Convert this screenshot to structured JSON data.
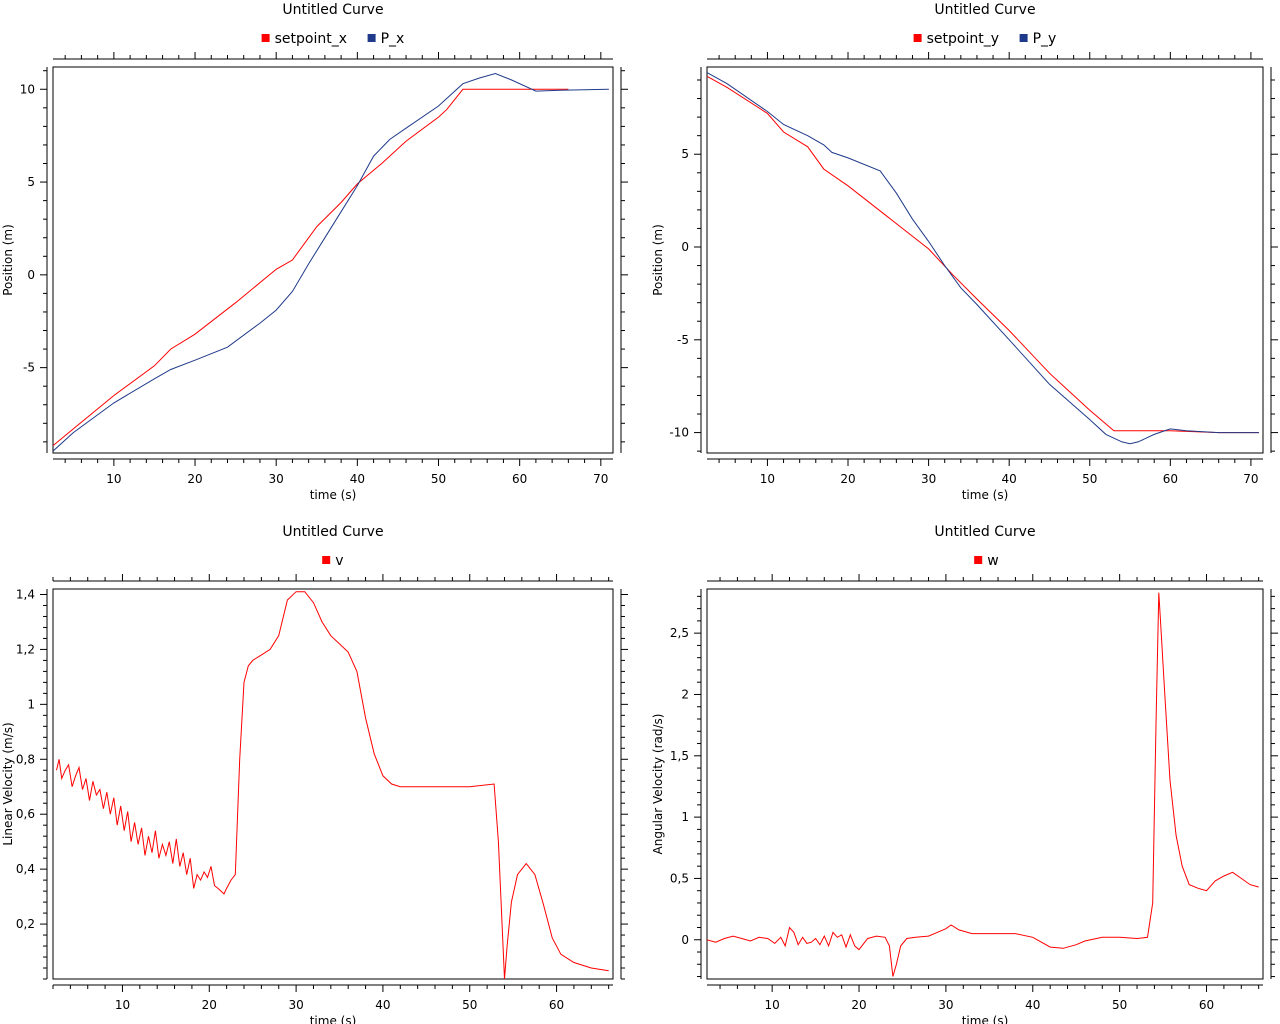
{
  "chart_data": [
    {
      "type": "line",
      "title": "Untitled Curve",
      "xlabel": "time (s)",
      "ylabel": "Position (m)",
      "xlim": [
        2.5,
        71.5
      ],
      "ylim": [
        -9.6,
        11.2
      ],
      "xticks": [
        10,
        20,
        30,
        40,
        50,
        60,
        70
      ],
      "yticks": [
        -5,
        0,
        5,
        10
      ],
      "xtick_labels": [
        "10",
        "20",
        "30",
        "40",
        "50",
        "60",
        "70"
      ],
      "ytick_labels": [
        "-5",
        "0",
        "5",
        "10"
      ],
      "grid": false,
      "legend": "top-center",
      "series": [
        {
          "name": "setpoint_x",
          "color": "#ff0000",
          "x": [
            2.5,
            5,
            10,
            15,
            17,
            20,
            25,
            30,
            32,
            35,
            38,
            40,
            43,
            46,
            50,
            51,
            53,
            54,
            60,
            66
          ],
          "y": [
            -9.2,
            -8.3,
            -6.5,
            -4.9,
            -4,
            -3.2,
            -1.5,
            0.3,
            0.8,
            2.6,
            3.9,
            4.9,
            6,
            7.2,
            8.5,
            8.9,
            10,
            10,
            10,
            10
          ]
        },
        {
          "name": "P_x",
          "color": "#1f3a8a",
          "x": [
            2.5,
            5,
            10,
            15,
            17,
            20,
            24,
            28,
            30,
            32,
            34,
            36,
            38,
            40,
            42,
            44,
            46,
            50,
            53,
            55,
            57,
            59,
            62,
            65,
            71
          ],
          "y": [
            -9.5,
            -8.5,
            -6.9,
            -5.6,
            -5.1,
            -4.6,
            -3.9,
            -2.6,
            -1.9,
            -0.9,
            0.6,
            2,
            3.4,
            4.8,
            6.4,
            7.3,
            7.9,
            9.1,
            10.3,
            10.6,
            10.85,
            10.5,
            9.9,
            9.95,
            10
          ]
        }
      ]
    },
    {
      "type": "line",
      "title": "Untitled Curve",
      "xlabel": "time (s)",
      "ylabel": "Position (m)",
      "xlim": [
        2.5,
        71.5
      ],
      "ylim": [
        -11.1,
        9.7
      ],
      "xticks": [
        10,
        20,
        30,
        40,
        50,
        60,
        70
      ],
      "yticks": [
        -10,
        -5,
        0,
        5
      ],
      "xtick_labels": [
        "10",
        "20",
        "30",
        "40",
        "50",
        "60",
        "70"
      ],
      "ytick_labels": [
        "-10",
        "-5",
        "0",
        "5"
      ],
      "grid": false,
      "legend": "top-center",
      "series": [
        {
          "name": "setpoint_y",
          "color": "#ff0000",
          "x": [
            2.5,
            5,
            10,
            12,
            15,
            17,
            20,
            25,
            30,
            33,
            36,
            40,
            45,
            50,
            53,
            54,
            60,
            66,
            71
          ],
          "y": [
            9.2,
            8.6,
            7.2,
            6.2,
            5.4,
            4.2,
            3.3,
            1.6,
            -0.1,
            -1.5,
            -2.8,
            -4.5,
            -6.8,
            -8.8,
            -9.9,
            -9.9,
            -9.9,
            -10,
            -10
          ]
        },
        {
          "name": "P_y",
          "color": "#1f3a8a",
          "x": [
            2.5,
            5,
            10,
            12,
            15,
            17,
            18,
            20,
            24,
            26,
            28,
            30,
            32,
            34,
            36,
            40,
            45,
            50,
            52,
            54,
            55,
            56,
            58,
            60,
            62,
            66,
            71
          ],
          "y": [
            9.4,
            8.8,
            7.3,
            6.6,
            6,
            5.5,
            5.1,
            4.8,
            4.1,
            2.9,
            1.5,
            0.3,
            -1,
            -2.2,
            -3.1,
            -5,
            -7.4,
            -9.3,
            -10.1,
            -10.5,
            -10.6,
            -10.5,
            -10.1,
            -9.8,
            -9.9,
            -10,
            -10
          ]
        }
      ]
    },
    {
      "type": "line",
      "title": "Untitled Curve",
      "xlabel": "time (s)",
      "ylabel": "Linear Velocity (m/s)",
      "xlim": [
        2,
        66.5
      ],
      "ylim": [
        0,
        1.42
      ],
      "xticks": [
        10,
        20,
        30,
        40,
        50,
        60
      ],
      "yticks": [
        0.2,
        0.4,
        0.6,
        0.8,
        1,
        1.2,
        1.4
      ],
      "xtick_labels": [
        "10",
        "20",
        "30",
        "40",
        "50",
        "60"
      ],
      "ytick_labels": [
        "0,2",
        "0,4",
        "0,6",
        "0,8",
        "1",
        "1,2",
        "1,4"
      ],
      "grid": false,
      "legend": "top-center",
      "series": [
        {
          "name": "v",
          "color": "#ff0000",
          "x": [
            2.4,
            2.7,
            3,
            3.4,
            3.8,
            4.2,
            4.6,
            5,
            5.4,
            5.8,
            6.2,
            6.6,
            7,
            7.4,
            7.8,
            8.2,
            8.6,
            9,
            9.4,
            9.8,
            10.2,
            10.6,
            11,
            11.4,
            11.8,
            12.2,
            12.6,
            13,
            13.4,
            13.8,
            14.2,
            14.6,
            15,
            15.4,
            15.8,
            16.2,
            16.6,
            17,
            17.4,
            17.8,
            18.2,
            18.6,
            19,
            19.4,
            19.8,
            20.2,
            20.6,
            21,
            21.7,
            22,
            22.5,
            23,
            23.5,
            24,
            24.5,
            25,
            26,
            27,
            28,
            29,
            30,
            31,
            32,
            33,
            34,
            35,
            36,
            37,
            38,
            39,
            40,
            41,
            42,
            43,
            44,
            45,
            46,
            50,
            52.8,
            53.3,
            54,
            54.3,
            54.8,
            55.5,
            56.5,
            57.5,
            58.5,
            59.5,
            60.5,
            62,
            64,
            66
          ],
          "y": [
            0.76,
            0.8,
            0.73,
            0.76,
            0.78,
            0.7,
            0.74,
            0.77,
            0.69,
            0.73,
            0.65,
            0.72,
            0.67,
            0.69,
            0.62,
            0.68,
            0.6,
            0.66,
            0.56,
            0.63,
            0.54,
            0.61,
            0.5,
            0.57,
            0.49,
            0.55,
            0.45,
            0.52,
            0.46,
            0.54,
            0.44,
            0.49,
            0.45,
            0.5,
            0.42,
            0.51,
            0.41,
            0.46,
            0.38,
            0.44,
            0.33,
            0.38,
            0.36,
            0.39,
            0.37,
            0.41,
            0.34,
            0.33,
            0.31,
            0.33,
            0.36,
            0.38,
            0.8,
            1.08,
            1.14,
            1.16,
            1.18,
            1.2,
            1.25,
            1.38,
            1.41,
            1.41,
            1.37,
            1.3,
            1.25,
            1.22,
            1.19,
            1.12,
            0.95,
            0.82,
            0.74,
            0.71,
            0.7,
            0.7,
            0.7,
            0.7,
            0.7,
            0.7,
            0.71,
            0.5,
            0.0,
            0.12,
            0.28,
            0.38,
            0.42,
            0.38,
            0.27,
            0.15,
            0.09,
            0.06,
            0.04,
            0.03
          ]
        }
      ]
    },
    {
      "type": "line",
      "title": "Untitled Curve",
      "xlabel": "time (s)",
      "ylabel": "Angular Velocity (rad/s)",
      "xlim": [
        2.5,
        66.5
      ],
      "ylim": [
        -0.32,
        2.86
      ],
      "xticks": [
        10,
        20,
        30,
        40,
        50,
        60
      ],
      "yticks": [
        0,
        0.5,
        1,
        1.5,
        2,
        2.5
      ],
      "xtick_labels": [
        "10",
        "20",
        "30",
        "40",
        "50",
        "60"
      ],
      "ytick_labels": [
        "0",
        "0,5",
        "1",
        "1,5",
        "2",
        "2,5"
      ],
      "grid": false,
      "legend": "top-center",
      "series": [
        {
          "name": "w",
          "color": "#ff0000",
          "x": [
            2.5,
            3.5,
            4.5,
            5.5,
            6.5,
            7.5,
            8.5,
            9.5,
            10.3,
            11,
            11.5,
            12,
            12.5,
            13,
            13.5,
            14,
            14.5,
            15,
            15.5,
            16,
            16.5,
            17,
            17.5,
            18,
            18.5,
            19,
            19.5,
            20,
            21,
            22,
            23,
            23.5,
            23.9,
            24.3,
            24.8,
            25.5,
            26.5,
            28,
            29,
            30,
            30.6,
            31.5,
            33,
            35,
            38,
            40,
            42,
            43.5,
            45,
            46,
            48,
            50,
            52,
            53.2,
            53.8,
            54.2,
            54.5,
            54.7,
            55.2,
            55.8,
            56.5,
            57.2,
            58,
            59,
            60,
            61,
            62,
            63,
            64,
            65,
            66
          ],
          "y": [
            0,
            -0.02,
            0.01,
            0.03,
            0.01,
            -0.01,
            0.02,
            0.01,
            -0.03,
            0.02,
            -0.05,
            0.1,
            0.06,
            -0.04,
            0.02,
            -0.03,
            -0.02,
            0.01,
            -0.04,
            0.03,
            -0.05,
            0.06,
            0.02,
            0.04,
            -0.06,
            0.04,
            -0.05,
            -0.08,
            0.01,
            0.03,
            0.02,
            -0.05,
            -0.3,
            -0.2,
            -0.05,
            0.01,
            0.02,
            0.03,
            0.06,
            0.09,
            0.12,
            0.08,
            0.05,
            0.05,
            0.05,
            0.02,
            -0.06,
            -0.07,
            -0.04,
            -0.01,
            0.02,
            0.02,
            0.01,
            0.02,
            0.3,
            1.8,
            2.83,
            2.6,
            2.0,
            1.3,
            0.85,
            0.6,
            0.45,
            0.42,
            0.4,
            0.48,
            0.52,
            0.55,
            0.5,
            0.45,
            0.43
          ]
        }
      ]
    }
  ]
}
